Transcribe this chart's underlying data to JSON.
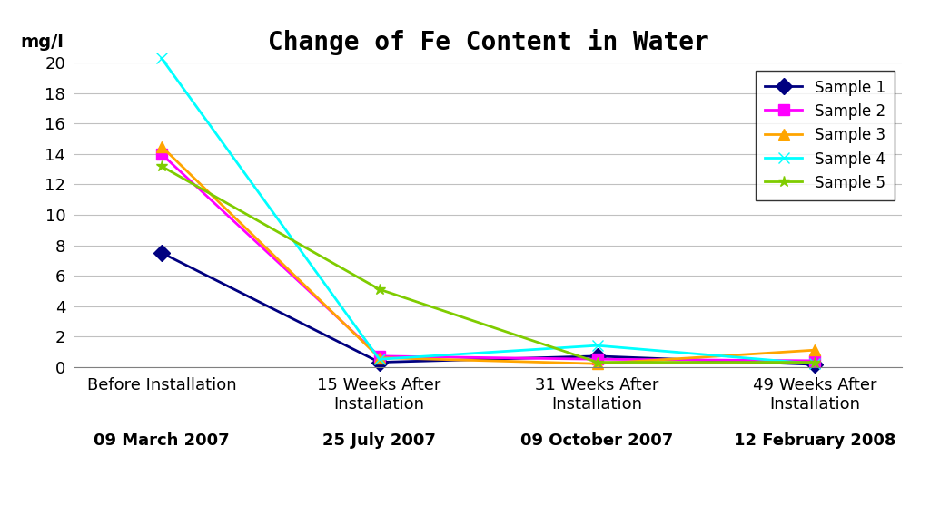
{
  "title": "Change of Fe Content in Water",
  "ylabel": "mg/l",
  "x_positions": [
    0,
    1,
    2,
    3
  ],
  "x_tick_labels_line1": [
    "Before Installation",
    "15 Weeks After\nInstallation",
    "31 Weeks After\nInstallation",
    "49 Weeks After\nInstallation"
  ],
  "x_tick_labels_line2": [
    "09 March 2007",
    "25 July 2007",
    "09 October 2007",
    "12 February 2008"
  ],
  "ylim": [
    0,
    20
  ],
  "yticks": [
    0,
    2,
    4,
    6,
    8,
    10,
    12,
    14,
    16,
    18,
    20
  ],
  "series": [
    {
      "label": "Sample 1",
      "color": "#000080",
      "marker": "D",
      "values": [
        7.5,
        0.3,
        0.7,
        0.15
      ]
    },
    {
      "label": "Sample 2",
      "color": "#FF00FF",
      "marker": "s",
      "values": [
        14.0,
        0.7,
        0.5,
        0.4
      ]
    },
    {
      "label": "Sample 3",
      "color": "#FFA500",
      "marker": "^",
      "values": [
        14.5,
        0.6,
        0.2,
        1.1
      ]
    },
    {
      "label": "Sample 4",
      "color": "#00FFFF",
      "marker": "x",
      "values": [
        20.3,
        0.5,
        1.4,
        0.2
      ]
    },
    {
      "label": "Sample 5",
      "color": "#7FCC00",
      "marker": "*",
      "values": [
        13.2,
        5.1,
        0.3,
        0.3
      ]
    }
  ],
  "background_color": "#FFFFFF",
  "grid_color": "#C0C0C0",
  "title_fontsize": 20,
  "legend_fontsize": 12,
  "axis_fontsize": 13,
  "date_fontsize": 13
}
